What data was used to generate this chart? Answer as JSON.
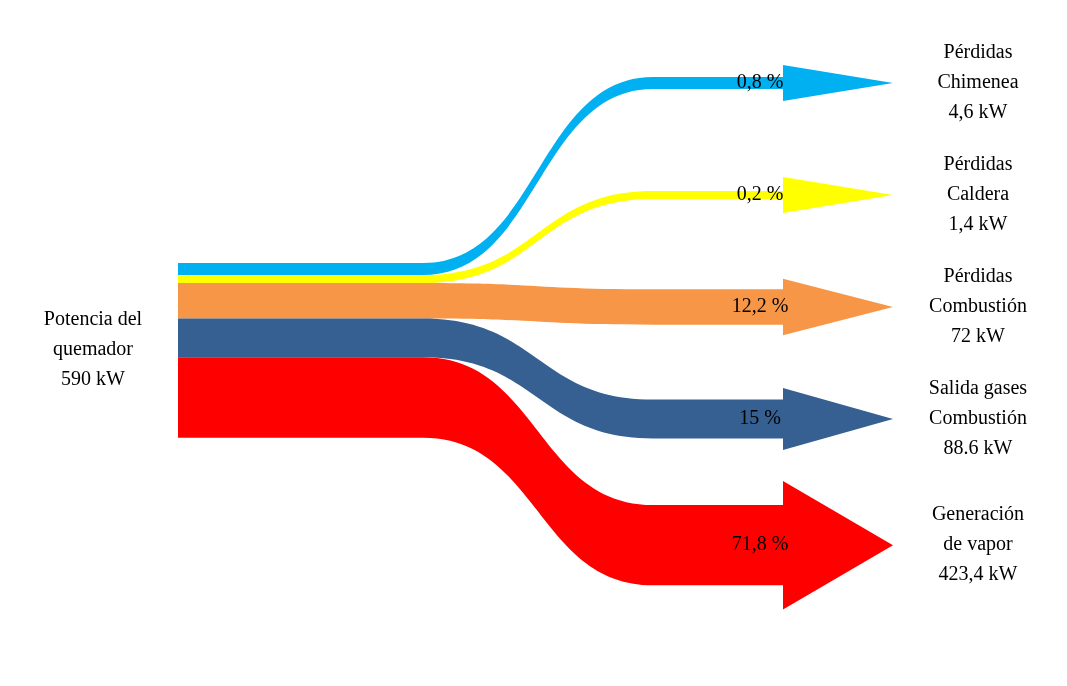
{
  "chart_data": {
    "type": "other",
    "categories": [
      "Pérdidas\nChimenea\n4,6 kW",
      "Pérdidas\nCaldera\n1,4 kW",
      "Pérdidas\nCombustión\n72 kW",
      "Salida gases\nCombustión\n88.6 kW",
      "Generación\nde vapor\n423,4 kW"
    ],
    "values": [
      0.8,
      0.2,
      12.2,
      15,
      71.8
    ],
    "value_labels": [
      "0,8 %",
      "0,2 %",
      "12,2 %",
      "15 %",
      "71,8 %"
    ],
    "colors": [
      "#00b0f0",
      "#ffff00",
      "#f79646",
      "#366092",
      "#ff0000"
    ],
    "annotations": [
      "Potencia del\nquemador\n590 kW"
    ]
  }
}
